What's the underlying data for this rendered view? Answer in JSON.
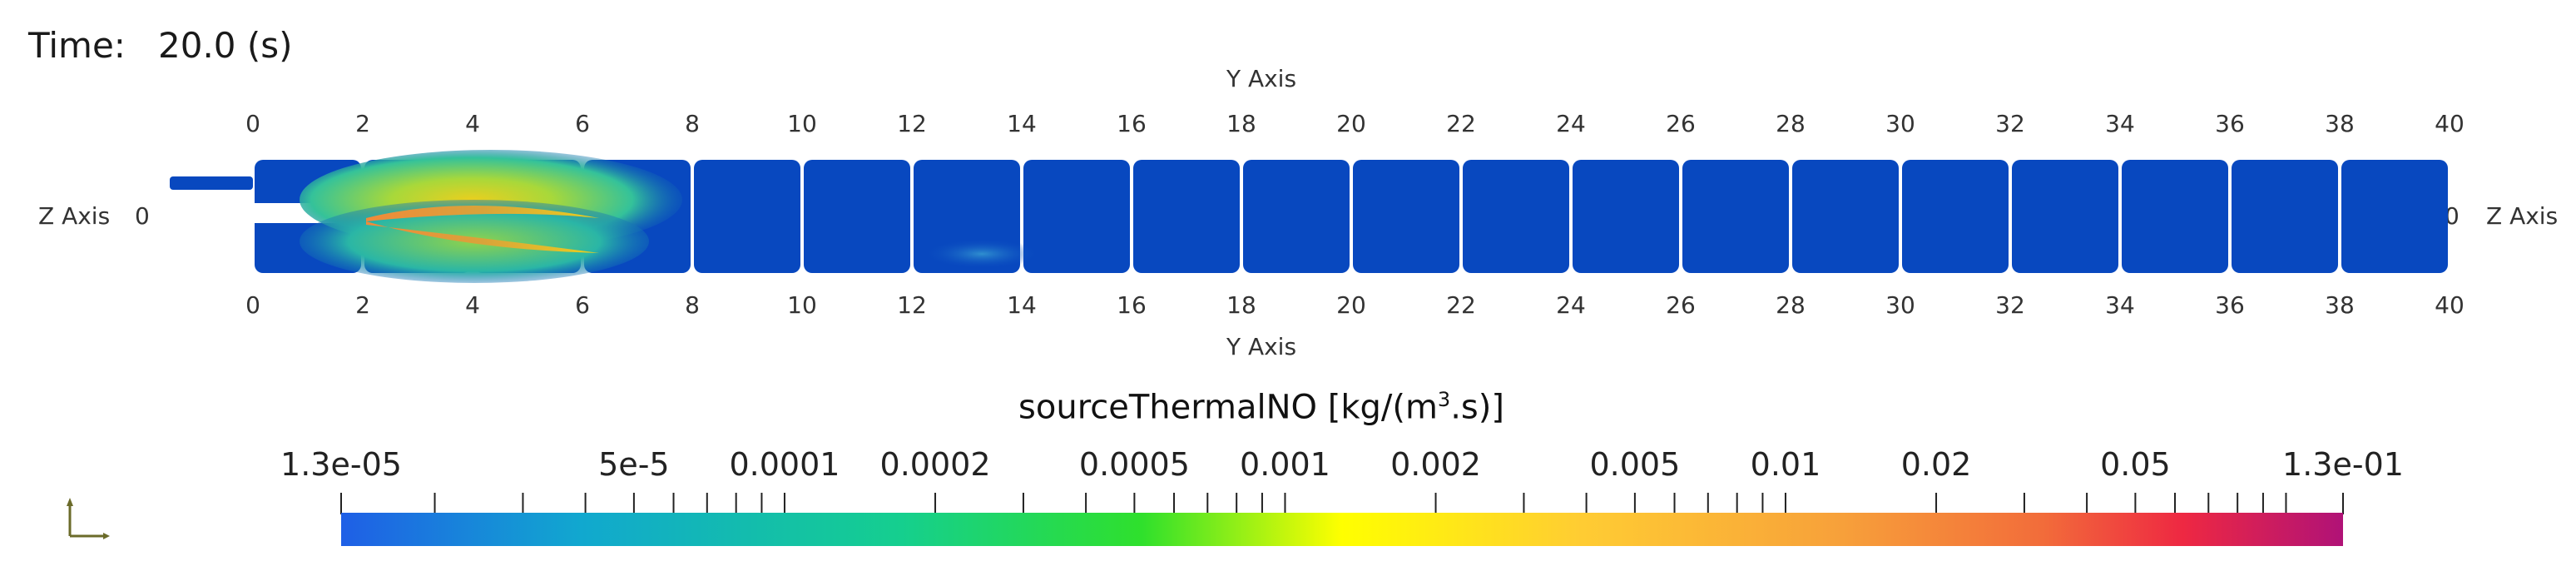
{
  "time": {
    "label": "Time:",
    "value": "20.0 (s)"
  },
  "axes": {
    "top_title": "Y Axis",
    "bottom_title": "Y Axis",
    "left_title": "Z Axis",
    "right_title": "Z Axis",
    "left_zero": "0",
    "right_zero": "0",
    "ticks": [
      "0",
      "2",
      "4",
      "6",
      "8",
      "10",
      "12",
      "14",
      "16",
      "18",
      "20",
      "22",
      "24",
      "26",
      "28",
      "30",
      "32",
      "34",
      "36",
      "38",
      "40"
    ]
  },
  "colorbar": {
    "title_main": "sourceThermalNO [kg/(m",
    "title_sup": "3",
    "title_end": ".s)]",
    "scale": "log",
    "range": [
      1.3e-05,
      0.13
    ],
    "labels": [
      {
        "text": "1.3e-05",
        "value": 1.3e-05
      },
      {
        "text": "5e-5",
        "value": 5e-05
      },
      {
        "text": "0.0001",
        "value": 0.0001
      },
      {
        "text": "0.0002",
        "value": 0.0002
      },
      {
        "text": "0.0005",
        "value": 0.0005
      },
      {
        "text": "0.001",
        "value": 0.001
      },
      {
        "text": "0.002",
        "value": 0.002
      },
      {
        "text": "0.005",
        "value": 0.005
      },
      {
        "text": "0.01",
        "value": 0.01
      },
      {
        "text": "0.02",
        "value": 0.02
      },
      {
        "text": "0.05",
        "value": 0.05
      },
      {
        "text": "1.3e-01",
        "value": 0.13
      }
    ],
    "colors": [
      "#1f5fe6",
      "#11a8cf",
      "#15cf8e",
      "#2fe02c",
      "#ffff00",
      "#ffcc33",
      "#f7a03a",
      "#f26c3a",
      "#ee2842",
      "#b01277"
    ]
  },
  "field": {
    "background_color": "#0848bf",
    "channel_color": "#ffffff"
  },
  "orientation_widget": {
    "icon": "axes-triad-icon"
  }
}
